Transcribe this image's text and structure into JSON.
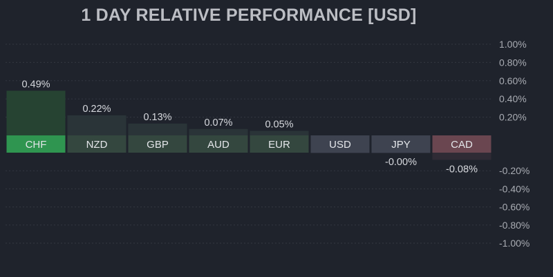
{
  "chart_data": {
    "type": "bar",
    "title": "1 DAY RELATIVE PERFORMANCE  [USD]",
    "categories": [
      "CHF",
      "NZD",
      "GBP",
      "AUD",
      "EUR",
      "USD",
      "JPY",
      "CAD"
    ],
    "values": [
      0.49,
      0.22,
      0.13,
      0.07,
      0.05,
      0.0,
      -0.0,
      -0.08
    ],
    "value_labels": [
      "0.49%",
      "0.22%",
      "0.13%",
      "0.07%",
      "0.05%",
      "",
      "-0.00%",
      "-0.08%"
    ],
    "y_ticks_positive": [
      "1.00%",
      "0.80%",
      "0.60%",
      "0.40%",
      "0.20%"
    ],
    "y_ticks_negative": [
      "-0.20%",
      "-0.40%",
      "-0.60%",
      "-0.80%",
      "-1.00%"
    ],
    "ylim": [
      -1.0,
      1.0
    ],
    "grid": true,
    "axis_position": "right",
    "colors": {
      "background": "#1f232c",
      "text": "#d7d9de",
      "tick_text": "#a9acb3",
      "grid": "#343842",
      "label_strong_positive": "#2f9550",
      "label_positive": "#34473f",
      "label_neutral": "#3e4350",
      "label_negative": "#6a4650"
    }
  }
}
